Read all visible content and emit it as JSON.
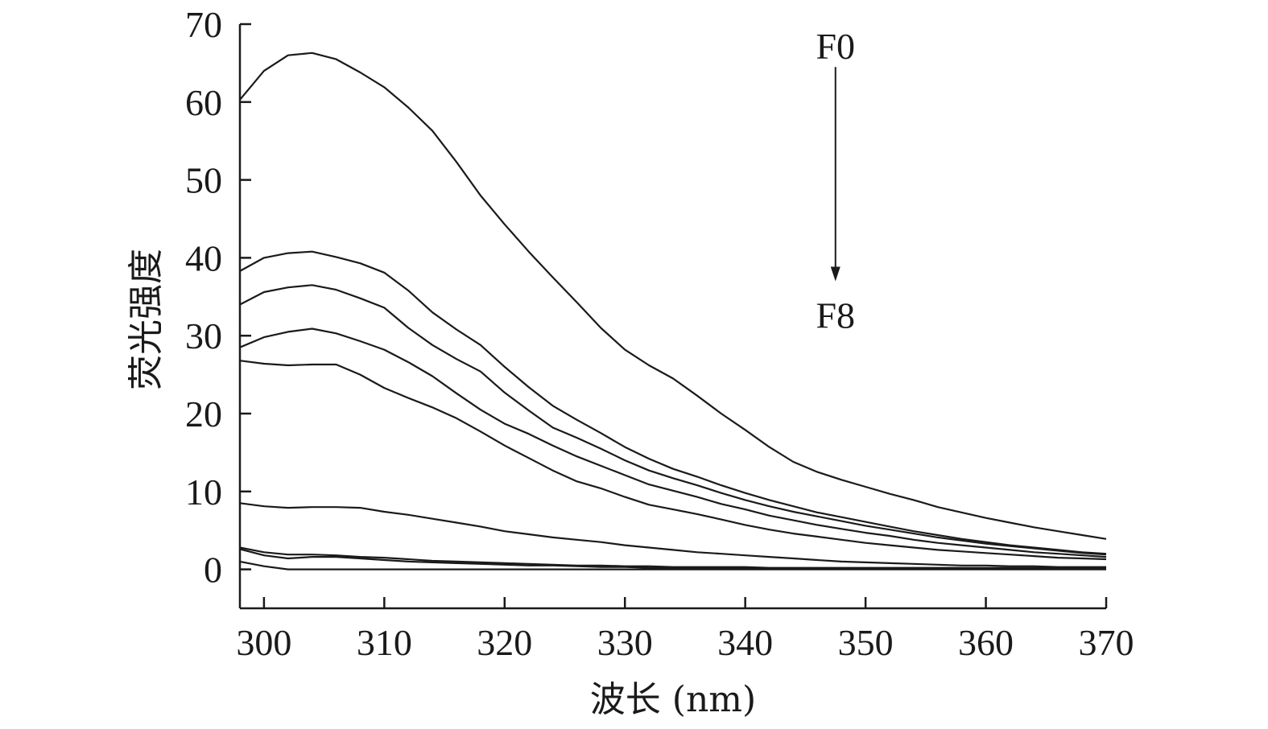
{
  "chart_data": {
    "type": "line",
    "xlabel": "波长 (nm)",
    "ylabel": "荧光强度",
    "xlim": [
      298,
      370
    ],
    "ylim": [
      -5,
      70
    ],
    "xticks": [
      300,
      310,
      320,
      330,
      340,
      350,
      360,
      370
    ],
    "yticks": [
      0,
      10,
      20,
      30,
      40,
      50,
      60,
      70
    ],
    "grid": false,
    "x": [
      298,
      300,
      302,
      304,
      306,
      308,
      310,
      312,
      314,
      316,
      318,
      320,
      322,
      324,
      326,
      328,
      330,
      332,
      334,
      336,
      338,
      340,
      342,
      344,
      346,
      348,
      350,
      352,
      354,
      356,
      358,
      360,
      362,
      364,
      366,
      368,
      370
    ],
    "series": [
      {
        "values": [
          60.3,
          64.0,
          66.0,
          66.3,
          65.5,
          63.8,
          61.9,
          59.3,
          56.3,
          52.3,
          48.0,
          44.3,
          40.8,
          37.5,
          34.3,
          31.0,
          28.2,
          26.2,
          24.5,
          22.3,
          20.0,
          17.9,
          15.7,
          13.8,
          12.5,
          11.5,
          10.6,
          9.7,
          8.9,
          8.0,
          7.3,
          6.6,
          6.0,
          5.4,
          4.9,
          4.4,
          3.9
        ]
      },
      {
        "values": [
          38.3,
          40.0,
          40.6,
          40.8,
          40.1,
          39.3,
          38.1,
          35.8,
          33.0,
          30.8,
          28.8,
          26.0,
          23.4,
          21.0,
          19.2,
          17.5,
          15.7,
          14.2,
          12.9,
          11.9,
          10.8,
          9.8,
          8.9,
          8.1,
          7.3,
          6.7,
          6.1,
          5.5,
          4.9,
          4.4,
          3.9,
          3.5,
          3.1,
          2.8,
          2.5,
          2.2,
          2.0
        ]
      },
      {
        "values": [
          34.0,
          35.6,
          36.2,
          36.5,
          35.9,
          34.8,
          33.6,
          31.0,
          28.8,
          27.0,
          25.4,
          22.7,
          20.4,
          18.2,
          16.9,
          15.5,
          14.0,
          12.7,
          11.7,
          10.8,
          9.8,
          8.9,
          8.1,
          7.4,
          6.8,
          6.2,
          5.6,
          5.1,
          4.6,
          4.1,
          3.7,
          3.3,
          3.0,
          2.7,
          2.4,
          2.1,
          1.9
        ]
      },
      {
        "values": [
          28.5,
          29.8,
          30.5,
          30.9,
          30.3,
          29.3,
          28.2,
          26.6,
          24.8,
          22.6,
          20.5,
          18.7,
          17.4,
          15.9,
          14.5,
          13.3,
          12.1,
          10.9,
          10.1,
          9.3,
          8.4,
          7.7,
          6.9,
          6.3,
          5.7,
          5.2,
          4.7,
          4.3,
          3.8,
          3.4,
          3.1,
          2.8,
          2.5,
          2.2,
          2.0,
          1.8,
          1.6
        ]
      },
      {
        "values": [
          26.8,
          26.4,
          26.2,
          26.3,
          26.3,
          25.0,
          23.3,
          22.0,
          20.8,
          19.4,
          17.7,
          15.9,
          14.3,
          12.7,
          11.3,
          10.4,
          9.3,
          8.3,
          7.7,
          7.1,
          6.4,
          5.7,
          5.1,
          4.6,
          4.2,
          3.8,
          3.4,
          3.1,
          2.8,
          2.5,
          2.3,
          2.1,
          1.9,
          1.7,
          1.5,
          1.4,
          1.3
        ]
      },
      {
        "values": [
          8.5,
          8.1,
          7.9,
          8.0,
          8.0,
          7.9,
          7.4,
          7.0,
          6.5,
          6.0,
          5.5,
          4.9,
          4.5,
          4.1,
          3.8,
          3.5,
          3.1,
          2.8,
          2.5,
          2.2,
          2.0,
          1.8,
          1.6,
          1.4,
          1.2,
          1.0,
          0.9,
          0.8,
          0.7,
          0.6,
          0.5,
          0.5,
          0.4,
          0.4,
          0.3,
          0.3,
          0.3
        ]
      },
      {
        "values": [
          2.6,
          1.8,
          1.4,
          1.6,
          1.6,
          1.4,
          1.2,
          1.0,
          0.9,
          0.8,
          0.7,
          0.6,
          0.5,
          0.5,
          0.4,
          0.3,
          0.3,
          0.2,
          0.2,
          0.2,
          0.2,
          0.1,
          0.1,
          0.1,
          0.1,
          0.1,
          0.1,
          0.1,
          0.1,
          0.1,
          0.1,
          0.1,
          0.1,
          0.1,
          0.1,
          0.1,
          0.1
        ]
      },
      {
        "values": [
          2.8,
          2.2,
          1.9,
          1.9,
          1.8,
          1.6,
          1.5,
          1.3,
          1.1,
          1.0,
          0.9,
          0.8,
          0.7,
          0.6,
          0.5,
          0.5,
          0.4,
          0.4,
          0.3,
          0.3,
          0.3,
          0.3,
          0.2,
          0.2,
          0.2,
          0.2,
          0.2,
          0.2,
          0.2,
          0.2,
          0.2,
          0.2,
          0.2,
          0.2,
          0.2,
          0.2,
          0.2
        ]
      },
      {
        "values": [
          1.0,
          0.4,
          0.0,
          0.0,
          0.0,
          0.0,
          0.0,
          0.0,
          0.0,
          0.0,
          0.0,
          0.0,
          0.0,
          0.0,
          0.0,
          0.0,
          0.0,
          0.0,
          0.0,
          0.0,
          0.0,
          0.0,
          0.0,
          0.0,
          0.0,
          0.0,
          0.0,
          0.0,
          0.0,
          0.0,
          0.0,
          0.0,
          0.0,
          0.0,
          0.0,
          0.0,
          0.0
        ]
      }
    ],
    "annotations": {
      "top_label": "F0",
      "bottom_label": "F8",
      "arrow_x": 347.5,
      "arrow_y_from": 64.5,
      "arrow_y_to": 37.0
    }
  }
}
